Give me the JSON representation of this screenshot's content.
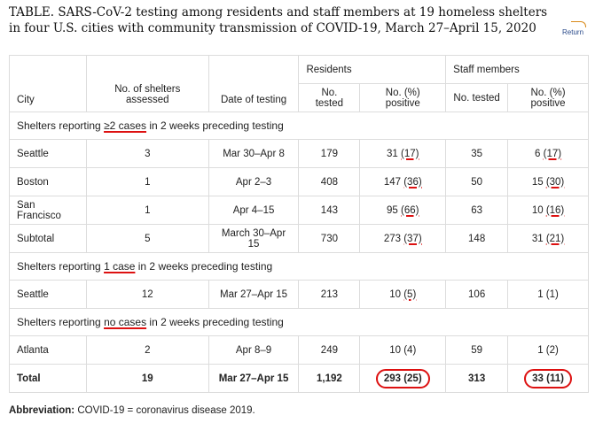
{
  "title": "TABLE. SARS-CoV-2 testing among residents and staff members at 19 homeless shelters in four U.S. cities with community transmission of COVID-19, March 27–April 15, 2020",
  "return_label": "Return",
  "headers": {
    "city": "City",
    "shelters": "No. of shelters assessed",
    "date": "Date of testing",
    "residents": "Residents",
    "staff": "Staff members",
    "res_tested": "No. tested",
    "res_positive": "No. (%) positive",
    "staff_tested": "No. tested",
    "staff_positive": "No. (%) positive"
  },
  "sections": [
    {
      "pre": "Shelters reporting ",
      "mark": "≥2 cases",
      "post": " in 2 weeks preceding testing",
      "rows": [
        {
          "city": "Seattle",
          "shelters": "3",
          "date": "Mar 30–Apr 8",
          "res_tested": "179",
          "res_pos_n": "31",
          "res_pos_pct": "(17)",
          "staff_tested": "35",
          "staff_pos_n": "6",
          "staff_pos_pct": "(17)"
        },
        {
          "city": "Boston",
          "shelters": "1",
          "date": "Apr 2–3",
          "res_tested": "408",
          "res_pos_n": "147",
          "res_pos_pct": "(36)",
          "staff_tested": "50",
          "staff_pos_n": "15",
          "staff_pos_pct": "(30)"
        },
        {
          "city": "San Francisco",
          "shelters": "1",
          "date": "Apr 4–15",
          "res_tested": "143",
          "res_pos_n": "95",
          "res_pos_pct": "(66)",
          "staff_tested": "63",
          "staff_pos_n": "10",
          "staff_pos_pct": "(16)"
        },
        {
          "city": "Subtotal",
          "shelters": "5",
          "date": "March 30–Apr 15",
          "res_tested": "730",
          "res_pos_n": "273",
          "res_pos_pct": "(37)",
          "staff_tested": "148",
          "staff_pos_n": "31",
          "staff_pos_pct": "(21)"
        }
      ]
    },
    {
      "pre": "Shelters reporting ",
      "mark": "1 case",
      "post": " in 2 weeks preceding testing",
      "rows": [
        {
          "city": "Seattle",
          "shelters": "12",
          "date": "Mar 27–Apr 15",
          "res_tested": "213",
          "res_pos_n": "10",
          "res_pos_pct": "(5)",
          "staff_tested": "106",
          "staff_pos": "1 (1)"
        }
      ]
    },
    {
      "pre": "Shelters reporting ",
      "mark": "no cases",
      "post": " in 2 weeks preceding testing",
      "rows": [
        {
          "city": "Atlanta",
          "shelters": "2",
          "date": "Apr 8–9",
          "res_tested": "249",
          "res_pos": "10 (4)",
          "staff_tested": "59",
          "staff_pos": "1 (2)"
        }
      ]
    }
  ],
  "total": {
    "city": "Total",
    "shelters": "19",
    "date": "Mar 27–Apr 15",
    "res_tested": "1,192",
    "res_pos": "293 (25)",
    "staff_tested": "313",
    "staff_pos": "33 (11)"
  },
  "abbreviation": {
    "label": "Abbreviation:",
    "text": " COVID-19 = coronavirus disease 2019."
  },
  "annotation_color": "#dd1111"
}
